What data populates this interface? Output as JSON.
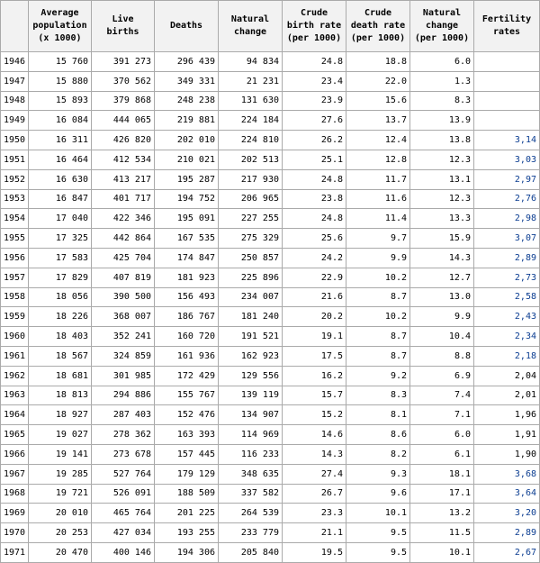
{
  "headers": [
    "",
    "Average population (x 1000)",
    "Live births",
    "Deaths",
    "Natural change",
    "Crude birth rate (per 1000)",
    "Crude death rate (per 1000)",
    "Natural change (per 1000)",
    "Fertility rates"
  ],
  "rows": [
    {
      "year": "1946",
      "pop": "15 760",
      "births": "391 273",
      "deaths": "296 439",
      "change": "94 834",
      "cbr": "24.8",
      "cdr": "18.8",
      "nc": "6.0",
      "fert": ""
    },
    {
      "year": "1947",
      "pop": "15 880",
      "births": "370 562",
      "deaths": "349 331",
      "change": "21 231",
      "cbr": "23.4",
      "cdr": "22.0",
      "nc": "1.3",
      "fert": ""
    },
    {
      "year": "1948",
      "pop": "15 893",
      "births": "379 868",
      "deaths": "248 238",
      "change": "131 630",
      "cbr": "23.9",
      "cdr": "15.6",
      "nc": "8.3",
      "fert": ""
    },
    {
      "year": "1949",
      "pop": "16 084",
      "births": "444 065",
      "deaths": "219 881",
      "change": "224 184",
      "cbr": "27.6",
      "cdr": "13.7",
      "nc": "13.9",
      "fert": ""
    },
    {
      "year": "1950",
      "pop": "16 311",
      "births": "426 820",
      "deaths": "202 010",
      "change": "224 810",
      "cbr": "26.2",
      "cdr": "12.4",
      "nc": "13.8",
      "fert": "3,14"
    },
    {
      "year": "1951",
      "pop": "16 464",
      "births": "412 534",
      "deaths": "210 021",
      "change": "202 513",
      "cbr": "25.1",
      "cdr": "12.8",
      "nc": "12.3",
      "fert": "3,03"
    },
    {
      "year": "1952",
      "pop": "16 630",
      "births": "413 217",
      "deaths": "195 287",
      "change": "217 930",
      "cbr": "24.8",
      "cdr": "11.7",
      "nc": "13.1",
      "fert": "2,97"
    },
    {
      "year": "1953",
      "pop": "16 847",
      "births": "401 717",
      "deaths": "194 752",
      "change": "206 965",
      "cbr": "23.8",
      "cdr": "11.6",
      "nc": "12.3",
      "fert": "2,76"
    },
    {
      "year": "1954",
      "pop": "17 040",
      "births": "422 346",
      "deaths": "195 091",
      "change": "227 255",
      "cbr": "24.8",
      "cdr": "11.4",
      "nc": "13.3",
      "fert": "2,98"
    },
    {
      "year": "1955",
      "pop": "17 325",
      "births": "442 864",
      "deaths": "167 535",
      "change": "275 329",
      "cbr": "25.6",
      "cdr": "9.7",
      "nc": "15.9",
      "fert": "3,07"
    },
    {
      "year": "1956",
      "pop": "17 583",
      "births": "425 704",
      "deaths": "174 847",
      "change": "250 857",
      "cbr": "24.2",
      "cdr": "9.9",
      "nc": "14.3",
      "fert": "2,89"
    },
    {
      "year": "1957",
      "pop": "17 829",
      "births": "407 819",
      "deaths": "181 923",
      "change": "225 896",
      "cbr": "22.9",
      "cdr": "10.2",
      "nc": "12.7",
      "fert": "2,73"
    },
    {
      "year": "1958",
      "pop": "18 056",
      "births": "390 500",
      "deaths": "156 493",
      "change": "234 007",
      "cbr": "21.6",
      "cdr": "8.7",
      "nc": "13.0",
      "fert": "2,58"
    },
    {
      "year": "1959",
      "pop": "18 226",
      "births": "368 007",
      "deaths": "186 767",
      "change": "181 240",
      "cbr": "20.2",
      "cdr": "10.2",
      "nc": "9.9",
      "fert": "2,43"
    },
    {
      "year": "1960",
      "pop": "18 403",
      "births": "352 241",
      "deaths": "160 720",
      "change": "191 521",
      "cbr": "19.1",
      "cdr": "8.7",
      "nc": "10.4",
      "fert": "2,34"
    },
    {
      "year": "1961",
      "pop": "18 567",
      "births": "324 859",
      "deaths": "161 936",
      "change": "162 923",
      "cbr": "17.5",
      "cdr": "8.7",
      "nc": "8.8",
      "fert": "2,18"
    },
    {
      "year": "1962",
      "pop": "18 681",
      "births": "301 985",
      "deaths": "172 429",
      "change": "129 556",
      "cbr": "16.2",
      "cdr": "9.2",
      "nc": "6.9",
      "fert": "2,04"
    },
    {
      "year": "1963",
      "pop": "18 813",
      "births": "294 886",
      "deaths": "155 767",
      "change": "139 119",
      "cbr": "15.7",
      "cdr": "8.3",
      "nc": "7.4",
      "fert": "2,01"
    },
    {
      "year": "1964",
      "pop": "18 927",
      "births": "287 403",
      "deaths": "152 476",
      "change": "134 907",
      "cbr": "15.2",
      "cdr": "8.1",
      "nc": "7.1",
      "fert": "1,96"
    },
    {
      "year": "1965",
      "pop": "19 027",
      "births": "278 362",
      "deaths": "163 393",
      "change": "114 969",
      "cbr": "14.6",
      "cdr": "8.6",
      "nc": "6.0",
      "fert": "1,91"
    },
    {
      "year": "1966",
      "pop": "19 141",
      "births": "273 678",
      "deaths": "157 445",
      "change": "116 233",
      "cbr": "14.3",
      "cdr": "8.2",
      "nc": "6.1",
      "fert": "1,90"
    },
    {
      "year": "1967",
      "pop": "19 285",
      "births": "527 764",
      "deaths": "179 129",
      "change": "348 635",
      "cbr": "27.4",
      "cdr": "9.3",
      "nc": "18.1",
      "fert": "3,68"
    },
    {
      "year": "1968",
      "pop": "19 721",
      "births": "526 091",
      "deaths": "188 509",
      "change": "337 582",
      "cbr": "26.7",
      "cdr": "9.6",
      "nc": "17.1",
      "fert": "3,64"
    },
    {
      "year": "1969",
      "pop": "20 010",
      "births": "465 764",
      "deaths": "201 225",
      "change": "264 539",
      "cbr": "23.3",
      "cdr": "10.1",
      "nc": "13.2",
      "fert": "3,20"
    },
    {
      "year": "1970",
      "pop": "20 253",
      "births": "427 034",
      "deaths": "193 255",
      "change": "233 779",
      "cbr": "21.1",
      "cdr": "9.5",
      "nc": "11.5",
      "fert": "2,89"
    },
    {
      "year": "1971",
      "pop": "20 470",
      "births": "400 146",
      "deaths": "194 306",
      "change": "205 840",
      "cbr": "19.5",
      "cdr": "9.5",
      "nc": "10.1",
      "fert": "2,67"
    }
  ],
  "plain_fertility_years": [
    "1962",
    "1963",
    "1964",
    "1965",
    "1966"
  ]
}
